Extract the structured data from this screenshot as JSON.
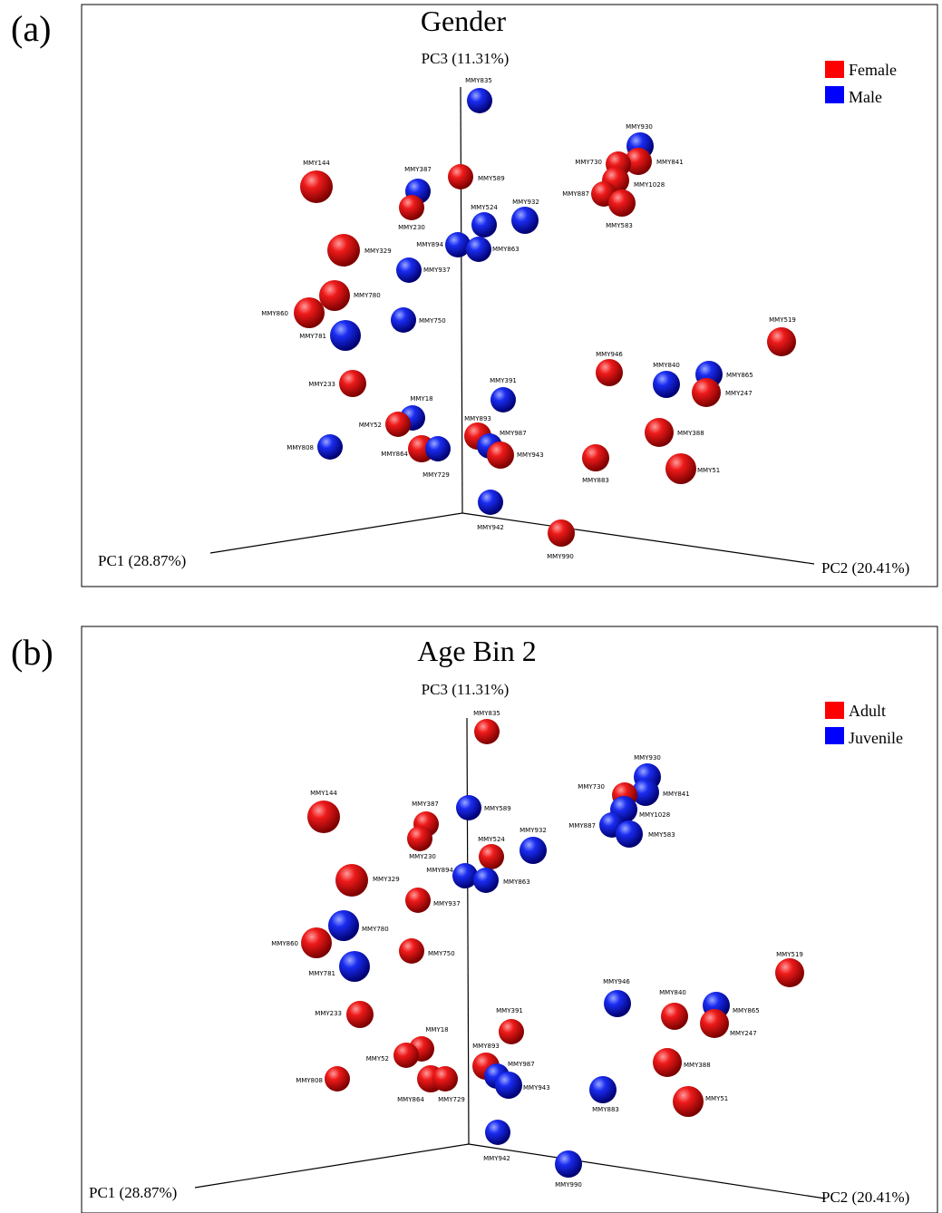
{
  "panel_letters": [
    "(a)",
    "(b)"
  ],
  "colors": {
    "Female": "#ff0000",
    "Male": "#0000ff",
    "Adult": "#ff0000",
    "Juvenile": "#0000ff"
  },
  "chart_data": [
    {
      "type": "scatter",
      "title": "Gender",
      "axes": {
        "pc1": "PC1 (28.87%)",
        "pc2": "PC2 (20.41%)",
        "pc3": "PC3 (11.31%)"
      },
      "legend": {
        "position": "top-right",
        "entries": [
          {
            "name": "Female",
            "color": "#ff0000"
          },
          {
            "name": "Male",
            "color": "#0000ff"
          }
        ]
      },
      "points": [
        {
          "id": "MMY835",
          "group": "Male"
        },
        {
          "id": "MMY144",
          "group": "Female"
        },
        {
          "id": "MMY387",
          "group": "Male"
        },
        {
          "id": "MMY589",
          "group": "Female"
        },
        {
          "id": "MMY230",
          "group": "Female"
        },
        {
          "id": "MMY524",
          "group": "Male"
        },
        {
          "id": "MMY932",
          "group": "Male"
        },
        {
          "id": "MMY930",
          "group": "Male"
        },
        {
          "id": "MMY730",
          "group": "Female"
        },
        {
          "id": "MMY841",
          "group": "Female"
        },
        {
          "id": "MMY1028",
          "group": "Female"
        },
        {
          "id": "MMY887",
          "group": "Female"
        },
        {
          "id": "MMY583",
          "group": "Female"
        },
        {
          "id": "MMY329",
          "group": "Female"
        },
        {
          "id": "MMY894",
          "group": "Male"
        },
        {
          "id": "MMY863",
          "group": "Male"
        },
        {
          "id": "MMY937",
          "group": "Male"
        },
        {
          "id": "MMY780",
          "group": "Female"
        },
        {
          "id": "MMY860",
          "group": "Female"
        },
        {
          "id": "MMY750",
          "group": "Male"
        },
        {
          "id": "MMY781",
          "group": "Male"
        },
        {
          "id": "MMY519",
          "group": "Female"
        },
        {
          "id": "MMY946",
          "group": "Female"
        },
        {
          "id": "MMY840",
          "group": "Male"
        },
        {
          "id": "MMY865",
          "group": "Male"
        },
        {
          "id": "MMY247",
          "group": "Female"
        },
        {
          "id": "MMY233",
          "group": "Female"
        },
        {
          "id": "MMY391",
          "group": "Male"
        },
        {
          "id": "MMY18",
          "group": "Male"
        },
        {
          "id": "MMY52",
          "group": "Female"
        },
        {
          "id": "MMY893",
          "group": "Female"
        },
        {
          "id": "MMY987",
          "group": "Male"
        },
        {
          "id": "MMY943",
          "group": "Female"
        },
        {
          "id": "MMY388",
          "group": "Female"
        },
        {
          "id": "MMY808",
          "group": "Male"
        },
        {
          "id": "MMY864",
          "group": "Female"
        },
        {
          "id": "MMY729",
          "group": "Male"
        },
        {
          "id": "MMY883",
          "group": "Female"
        },
        {
          "id": "MMY51",
          "group": "Female"
        },
        {
          "id": "MMY942",
          "group": "Male"
        },
        {
          "id": "MMY990",
          "group": "Female"
        }
      ]
    },
    {
      "type": "scatter",
      "title": "Age Bin 2",
      "axes": {
        "pc1": "PC1 (28.87%)",
        "pc2": "PC2 (20.41%)",
        "pc3": "PC3 (11.31%)"
      },
      "legend": {
        "position": "top-right",
        "entries": [
          {
            "name": "Adult",
            "color": "#ff0000"
          },
          {
            "name": "Juvenile",
            "color": "#0000ff"
          }
        ]
      },
      "points": [
        {
          "id": "MMY835",
          "group": "Adult"
        },
        {
          "id": "MMY144",
          "group": "Adult"
        },
        {
          "id": "MMY387",
          "group": "Adult"
        },
        {
          "id": "MMY589",
          "group": "Juvenile"
        },
        {
          "id": "MMY230",
          "group": "Adult"
        },
        {
          "id": "MMY524",
          "group": "Adult"
        },
        {
          "id": "MMY932",
          "group": "Juvenile"
        },
        {
          "id": "MMY930",
          "group": "Juvenile"
        },
        {
          "id": "MMY730",
          "group": "Adult"
        },
        {
          "id": "MMY841",
          "group": "Juvenile"
        },
        {
          "id": "MMY1028",
          "group": "Juvenile"
        },
        {
          "id": "MMY887",
          "group": "Juvenile"
        },
        {
          "id": "MMY583",
          "group": "Juvenile"
        },
        {
          "id": "MMY329",
          "group": "Adult"
        },
        {
          "id": "MMY894",
          "group": "Juvenile"
        },
        {
          "id": "MMY863",
          "group": "Juvenile"
        },
        {
          "id": "MMY937",
          "group": "Adult"
        },
        {
          "id": "MMY780",
          "group": "Juvenile"
        },
        {
          "id": "MMY860",
          "group": "Adult"
        },
        {
          "id": "MMY750",
          "group": "Adult"
        },
        {
          "id": "MMY781",
          "group": "Juvenile"
        },
        {
          "id": "MMY519",
          "group": "Adult"
        },
        {
          "id": "MMY946",
          "group": "Juvenile"
        },
        {
          "id": "MMY840",
          "group": "Adult"
        },
        {
          "id": "MMY865",
          "group": "Juvenile"
        },
        {
          "id": "MMY247",
          "group": "Adult"
        },
        {
          "id": "MMY233",
          "group": "Adult"
        },
        {
          "id": "MMY391",
          "group": "Adult"
        },
        {
          "id": "MMY18",
          "group": "Adult"
        },
        {
          "id": "MMY52",
          "group": "Adult"
        },
        {
          "id": "MMY893",
          "group": "Adult"
        },
        {
          "id": "MMY987",
          "group": "Juvenile"
        },
        {
          "id": "MMY943",
          "group": "Juvenile"
        },
        {
          "id": "MMY388",
          "group": "Adult"
        },
        {
          "id": "MMY808",
          "group": "Adult"
        },
        {
          "id": "MMY864",
          "group": "Adult"
        },
        {
          "id": "MMY729",
          "group": "Adult"
        },
        {
          "id": "MMY883",
          "group": "Juvenile"
        },
        {
          "id": "MMY51",
          "group": "Adult"
        },
        {
          "id": "MMY942",
          "group": "Juvenile"
        },
        {
          "id": "MMY990",
          "group": "Juvenile"
        }
      ]
    }
  ]
}
